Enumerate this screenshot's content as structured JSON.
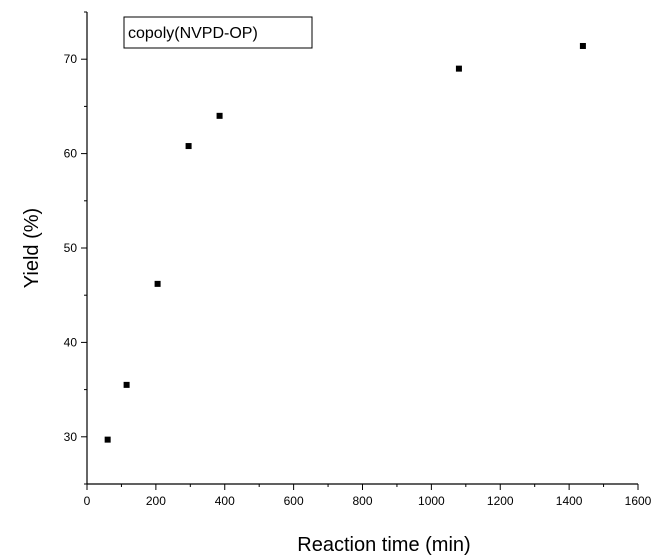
{
  "chart_data": {
    "type": "scatter",
    "legend": "copoly(NVPD-OP)",
    "legend_position": "top-left",
    "xlabel": "Reaction time (min)",
    "ylabel": "Yield (%)",
    "xlim": [
      0,
      1600
    ],
    "ylim": [
      25,
      75
    ],
    "x_ticks": [
      0,
      200,
      400,
      600,
      800,
      1000,
      1200,
      1400,
      1600
    ],
    "y_ticks": [
      30,
      40,
      50,
      60,
      70
    ],
    "grid": false,
    "marker": "square",
    "marker_color": "#000000",
    "points": [
      {
        "x": 60,
        "y": 29.7
      },
      {
        "x": 115,
        "y": 35.5
      },
      {
        "x": 205,
        "y": 46.2
      },
      {
        "x": 295,
        "y": 60.8
      },
      {
        "x": 385,
        "y": 64.0
      },
      {
        "x": 1080,
        "y": 69.0
      },
      {
        "x": 1440,
        "y": 71.4
      }
    ]
  }
}
